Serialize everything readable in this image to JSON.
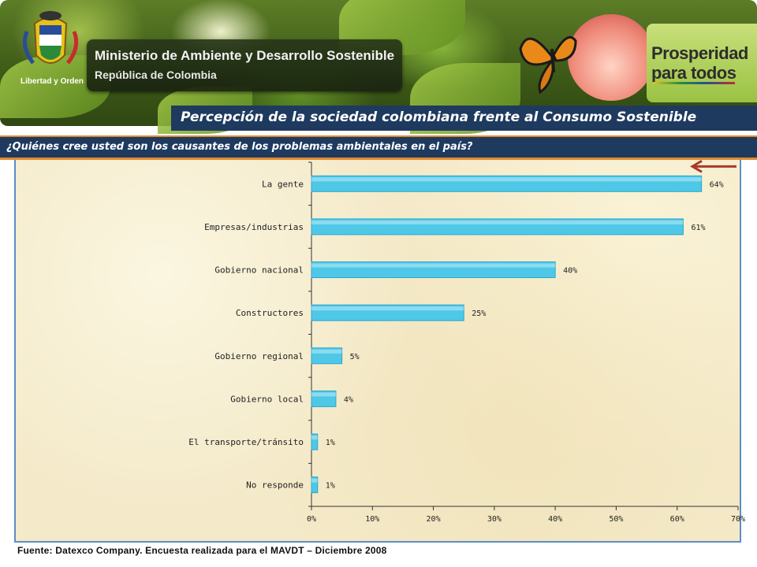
{
  "header": {
    "ministry_title": "Ministerio de Ambiente y Desarrollo Sostenible",
    "ministry_subtitle": "República de Colombia",
    "crest_motto": "Libertad y Orden",
    "slogan_line1": "Prosperidad",
    "slogan_line2": "para todos"
  },
  "title": "Percepción de la sociedad colombiana frente al Consumo Sostenible",
  "question": "¿Quiénes  cree usted son los causantes de los problemas ambientales en el país?",
  "footer": "Fuente:  Datexco  Company.  Encuesta  realizada para el MAVDT  – Diciembre 2008",
  "colors": {
    "bar_fill": "#4fc8e8",
    "bar_stroke": "#2aa6cc",
    "title_bar": "#1f3a5f",
    "accent_orange": "#e08a2e",
    "arrow": "#a83a2a"
  },
  "chart_data": {
    "type": "bar",
    "orientation": "horizontal",
    "categories": [
      "La gente",
      "Empresas/industrias",
      "Gobierno nacional",
      "Constructores",
      "Gobierno regional",
      "Gobierno local",
      "El transporte/tránsito",
      "No responde"
    ],
    "values": [
      64,
      61,
      40,
      25,
      5,
      4,
      1,
      1
    ],
    "data_labels": [
      "64%",
      "61%",
      "40%",
      "25%",
      "5%",
      "4%",
      "1%",
      "1%"
    ],
    "xlim": [
      0,
      70
    ],
    "x_ticks": [
      "0%",
      "10%",
      "20%",
      "30%",
      "40%",
      "50%",
      "60%",
      "70%"
    ],
    "x_tick_values": [
      0,
      10,
      20,
      30,
      40,
      50,
      60,
      70
    ],
    "grid": false,
    "annotation": "arrow pointing to La gente"
  }
}
